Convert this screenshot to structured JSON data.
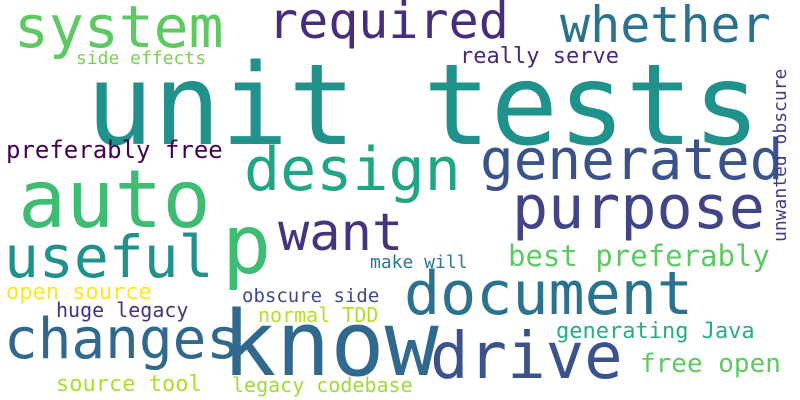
{
  "words": [
    {
      "id": "unit-tests",
      "text": "unit tests",
      "color": "#21918c"
    },
    {
      "id": "know",
      "text": "know",
      "color": "#31688e"
    },
    {
      "id": "auto",
      "text": "auto",
      "color": "#3fbc73"
    },
    {
      "id": "p",
      "text": "p",
      "color": "#3fbc73"
    },
    {
      "id": "system",
      "text": "system",
      "color": "#5ec962"
    },
    {
      "id": "required",
      "text": "required",
      "color": "#472d7b"
    },
    {
      "id": "whether",
      "text": "whether",
      "color": "#2c728e"
    },
    {
      "id": "design",
      "text": "design",
      "color": "#21a585"
    },
    {
      "id": "generated",
      "text": "generated",
      "color": "#3b528b"
    },
    {
      "id": "purpose",
      "text": "purpose",
      "color": "#414487"
    },
    {
      "id": "want",
      "text": "want",
      "color": "#46337e"
    },
    {
      "id": "useful",
      "text": "useful",
      "color": "#21918c"
    },
    {
      "id": "document",
      "text": "document",
      "color": "#2c728e"
    },
    {
      "id": "changes",
      "text": "changes",
      "color": "#31688e"
    },
    {
      "id": "drive",
      "text": "drive",
      "color": "#3b528b"
    },
    {
      "id": "side-effects",
      "text": "side effects",
      "color": "#7ad151"
    },
    {
      "id": "really-serve",
      "text": "really serve",
      "color": "#482878"
    },
    {
      "id": "preferably-free",
      "text": "preferably free",
      "color": "#440154"
    },
    {
      "id": "best-preferably",
      "text": "best preferably",
      "color": "#5ec962"
    },
    {
      "id": "make-will",
      "text": "make will",
      "color": "#2a788e"
    },
    {
      "id": "open-source",
      "text": "open source",
      "color": "#fde725"
    },
    {
      "id": "huge-legacy",
      "text": "huge legacy",
      "color": "#46337e"
    },
    {
      "id": "obscure-side",
      "text": "obscure side",
      "color": "#3e4a89"
    },
    {
      "id": "normal-tdd",
      "text": "normal TDD",
      "color": "#b5de2b"
    },
    {
      "id": "generating-java",
      "text": "generating Java",
      "color": "#27ad81"
    },
    {
      "id": "free-open",
      "text": "free open",
      "color": "#5ec962"
    },
    {
      "id": "source-tool",
      "text": "source tool",
      "color": "#addc30"
    },
    {
      "id": "legacy-codebase",
      "text": "legacy codebase",
      "color": "#a0da39"
    },
    {
      "id": "unwanted-obscure",
      "text": "unwanted obscure",
      "color": "#443983"
    }
  ]
}
